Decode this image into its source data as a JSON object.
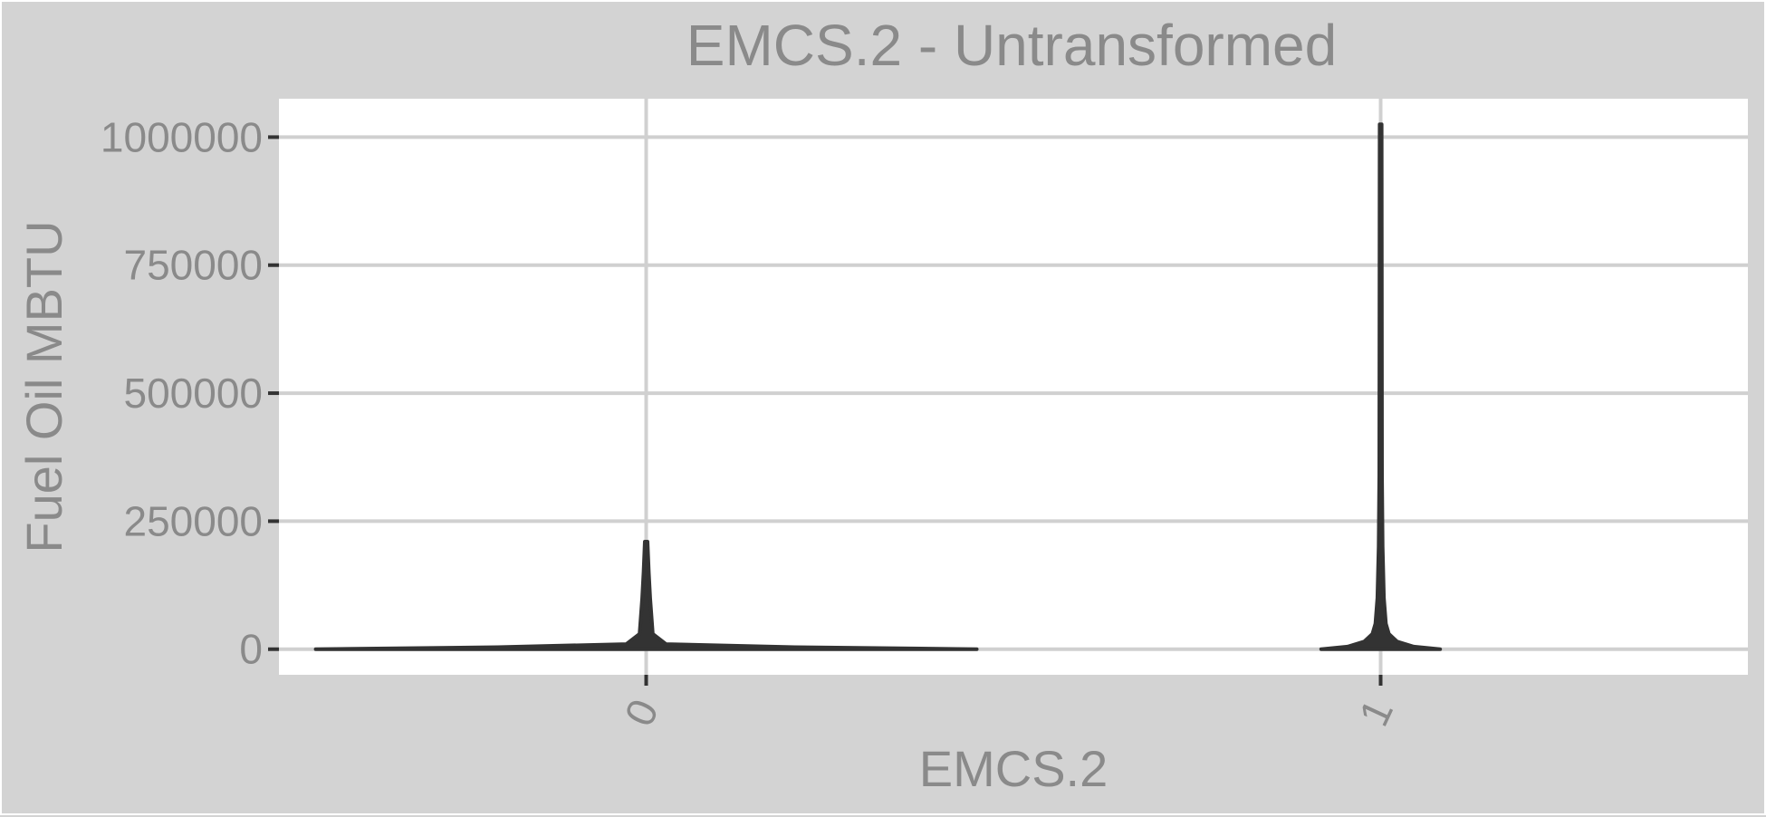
{
  "chart_data": {
    "type": "violin",
    "title": "EMCS.2 - Untransformed",
    "xlabel": "EMCS.2",
    "ylabel": "Fuel Oil MBTU",
    "categories": [
      "0",
      "1"
    ],
    "y_ticks": [
      0,
      250000,
      500000,
      750000,
      1000000
    ],
    "y_tick_labels": [
      "0",
      "250000",
      "500000",
      "750000",
      "1000000"
    ],
    "ylim": [
      -50000,
      1075000
    ],
    "grid": true,
    "legend": "none",
    "series": [
      {
        "category": "0",
        "min": 0,
        "max": 210000,
        "density_profile": [
          {
            "y": 0,
            "width": 1.0
          },
          {
            "y": 4000,
            "width": 0.45
          },
          {
            "y": 10000,
            "width": 0.06
          },
          {
            "y": 30000,
            "width": 0.02
          },
          {
            "y": 100000,
            "width": 0.012
          },
          {
            "y": 150000,
            "width": 0.008
          },
          {
            "y": 210000,
            "width": 0.004
          }
        ]
      },
      {
        "category": "1",
        "min": 0,
        "max": 1025000,
        "density_profile": [
          {
            "y": 0,
            "width": 0.18
          },
          {
            "y": 5000,
            "width": 0.1
          },
          {
            "y": 15000,
            "width": 0.05
          },
          {
            "y": 30000,
            "width": 0.025
          },
          {
            "y": 50000,
            "width": 0.016
          },
          {
            "y": 100000,
            "width": 0.01
          },
          {
            "y": 200000,
            "width": 0.006
          },
          {
            "y": 340000,
            "width": 0.004
          },
          {
            "y": 1025000,
            "width": 0.003
          }
        ]
      }
    ],
    "colors": {
      "panel_background": "#ffffff",
      "plot_background": "#d3d3d3",
      "gridline": "#d0d0d0",
      "violin_outline": "#333333",
      "text": "#8a8a8a"
    }
  }
}
